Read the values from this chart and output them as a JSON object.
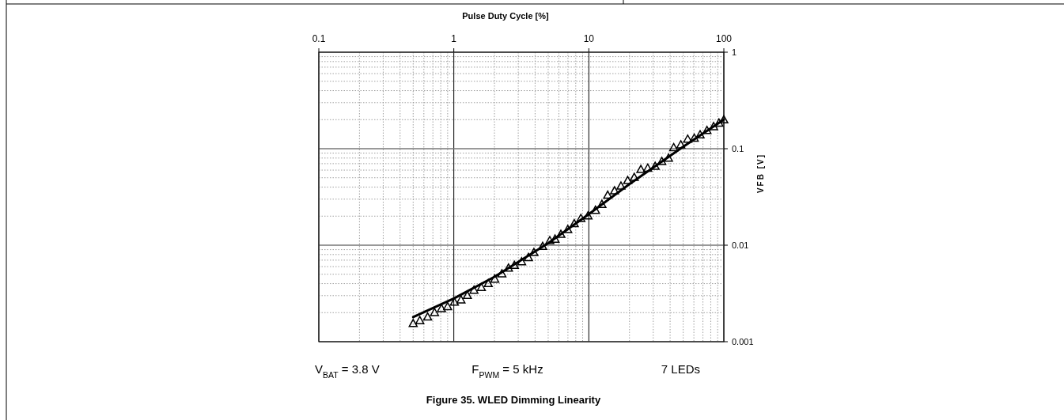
{
  "chart_data": {
    "type": "scatter",
    "title": "Figure 35. WLED Dimming Linearity",
    "xlabel": "Pulse Duty Cycle [%]",
    "ylabel": "VFB [V]",
    "annotations": [
      "V$_{BAT}$ = 3.8 V",
      "F$_{PWM}$ = 5 kHz",
      "7 LEDs"
    ],
    "log": "xy",
    "grid": true,
    "xlim": [
      0.1,
      100
    ],
    "ylim": [
      0.001,
      1
    ],
    "xticks": [
      0.1,
      {
        "value": 0.2,
        "label": null
      },
      {
        "value": 0.3,
        "label": null
      },
      {
        "value": 0.4,
        "label": null
      },
      {
        "value": 0.5,
        "label": null
      },
      {
        "value": 0.6,
        "label": null
      },
      {
        "value": 0.7,
        "label": null
      },
      {
        "value": 0.8,
        "label": null
      },
      {
        "value": 0.9,
        "label": null
      },
      1,
      {
        "value": 2,
        "label": null
      },
      {
        "value": 3,
        "label": null
      },
      {
        "value": 4,
        "label": null
      },
      {
        "value": 5,
        "label": null
      },
      {
        "value": 6,
        "label": null
      },
      {
        "value": 7,
        "label": null
      },
      {
        "value": 8,
        "label": null
      },
      {
        "value": 9,
        "label": null
      },
      10,
      {
        "value": 20,
        "label": null
      },
      {
        "value": 30,
        "label": null
      },
      {
        "value": 40,
        "label": null
      },
      {
        "value": 50,
        "label": null
      },
      {
        "value": 60,
        "label": null
      },
      {
        "value": 70,
        "label": null
      },
      {
        "value": 80,
        "label": null
      },
      {
        "value": 90,
        "label": null
      },
      100
    ],
    "yticks": [
      0.001,
      {
        "value": 0.002,
        "label": null
      },
      {
        "value": 0.003,
        "label": null
      },
      {
        "value": 0.004,
        "label": null
      },
      {
        "value": 0.005,
        "label": null
      },
      {
        "value": 0.006,
        "label": null
      },
      {
        "value": 0.007,
        "label": null
      },
      {
        "value": 0.008,
        "label": null
      },
      {
        "value": 0.009,
        "label": null
      },
      0.01,
      {
        "value": 0.02,
        "label": null
      },
      {
        "value": 0.03,
        "label": null
      },
      {
        "value": 0.04,
        "label": null
      },
      {
        "value": 0.05,
        "label": null
      },
      {
        "value": 0.06,
        "label": null
      },
      {
        "value": 0.07,
        "label": null
      },
      {
        "value": 0.08,
        "label": null
      },
      {
        "value": 0.09,
        "label": null
      },
      0.1,
      {
        "value": 0.2,
        "label": null
      },
      {
        "value": 0.3,
        "label": null
      },
      {
        "value": 0.4,
        "label": null
      },
      {
        "value": 0.5,
        "label": null
      },
      {
        "value": 0.6,
        "label": null
      },
      {
        "value": 0.7,
        "label": null
      },
      {
        "value": 0.8,
        "label": null
      },
      {
        "value": 0.9,
        "label": null
      },
      1
    ],
    "series": [
      {
        "color": "#000000",
        "marker": "triangle",
        "x": [
          0.5,
          0.56,
          0.64,
          0.72,
          0.81,
          0.9,
          1.01,
          1.13,
          1.26,
          1.41,
          1.6,
          1.8,
          2.01,
          2.27,
          2.54,
          2.81,
          3.18,
          3.57,
          3.92,
          4.55,
          5.14,
          5.62,
          6.21,
          6.98,
          7.8,
          8.73,
          9.86,
          11.2,
          12.5,
          13.8,
          15.5,
          17.3,
          19.4,
          21.7,
          24.3,
          27.3,
          31,
          34.7,
          38.9,
          42.5,
          48,
          54,
          60.4,
          66.7,
          75,
          84,
          92,
          100
        ],
        "values": [
          0.00155,
          0.00166,
          0.00181,
          0.00201,
          0.00221,
          0.00232,
          0.00258,
          0.00272,
          0.00303,
          0.00343,
          0.00366,
          0.00402,
          0.00447,
          0.00507,
          0.00582,
          0.0062,
          0.00676,
          0.00748,
          0.00843,
          0.00975,
          0.0112,
          0.0116,
          0.013,
          0.0146,
          0.0168,
          0.019,
          0.0202,
          0.0231,
          0.0266,
          0.0331,
          0.0367,
          0.0411,
          0.0469,
          0.0506,
          0.0611,
          0.063,
          0.066,
          0.074,
          0.0801,
          0.103,
          0.11,
          0.126,
          0.129,
          0.14,
          0.155,
          0.17,
          0.185,
          0.2
        ]
      },
      {
        "type": "line",
        "color": "#000000",
        "line_style": "solid",
        "marker": "none",
        "x": [
          0.5,
          1,
          2,
          5,
          10,
          20,
          50,
          100
        ],
        "values": [
          0.0018,
          0.0028,
          0.0047,
          0.0105,
          0.021,
          0.043,
          0.105,
          0.2
        ]
      }
    ]
  }
}
